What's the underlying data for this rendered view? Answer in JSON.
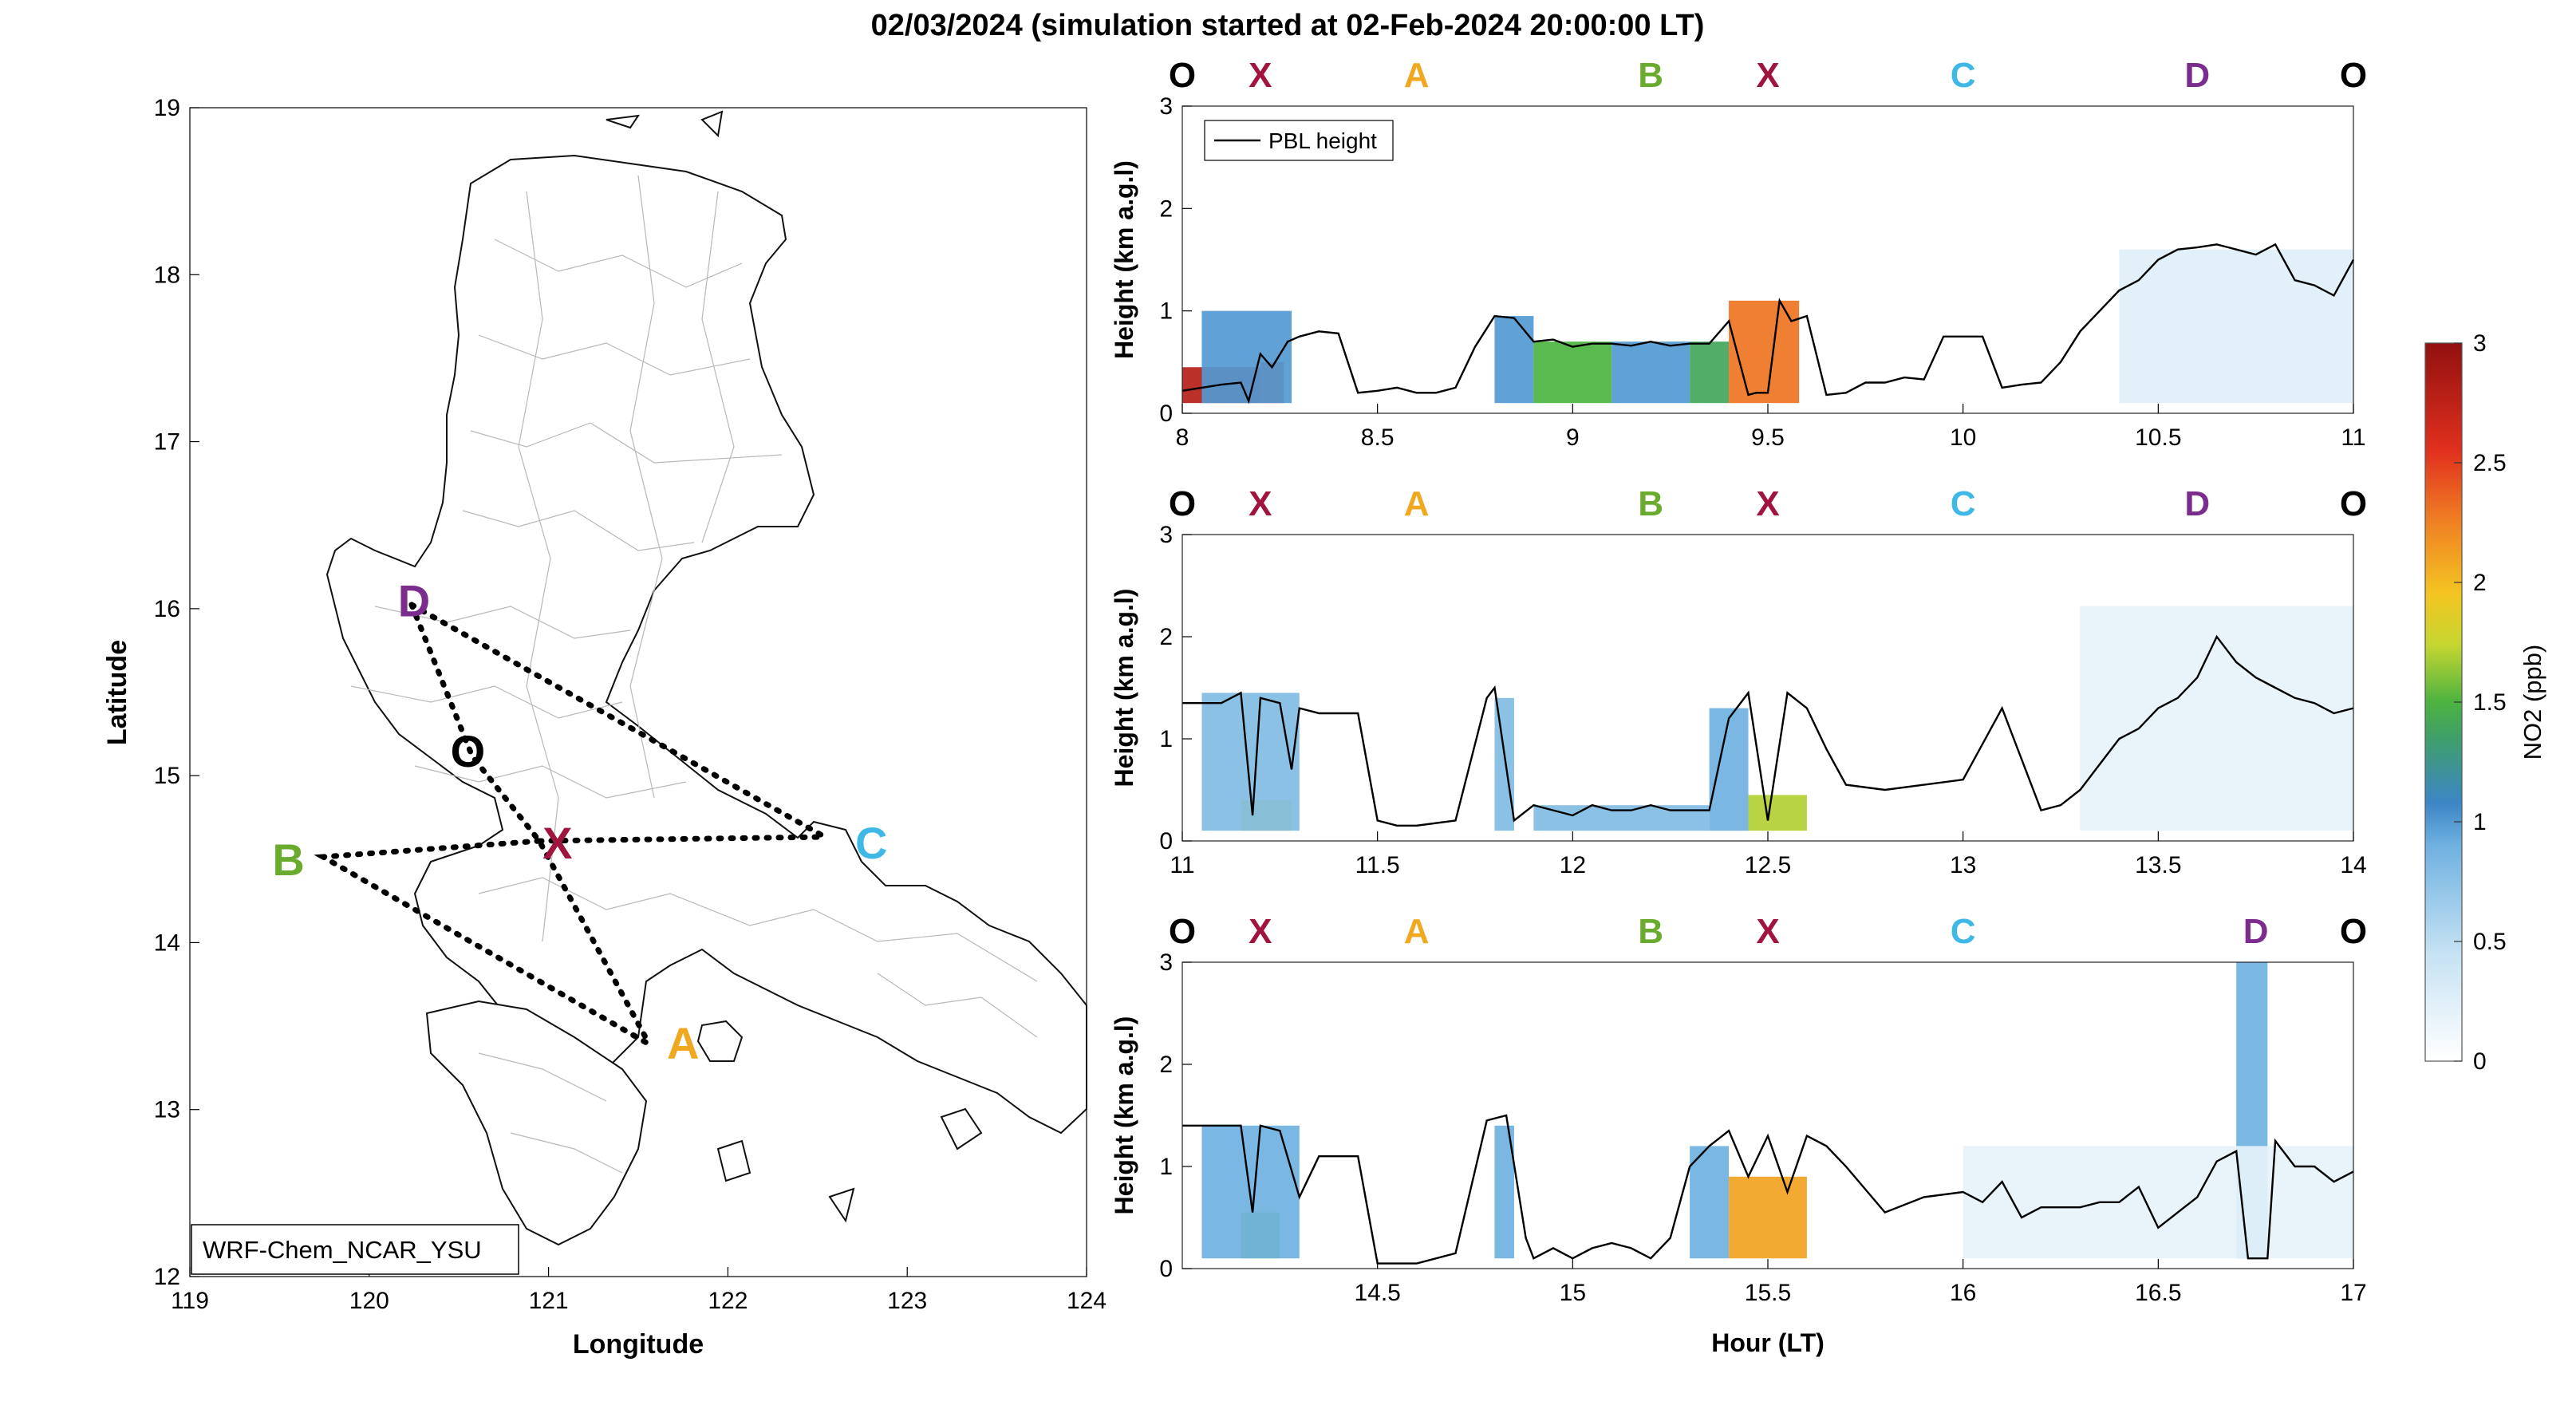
{
  "title": "02/03/2024 (simulation started at 02-Feb-2024 20:00:00 LT)",
  "map": {
    "xlabel": "Longitude",
    "ylabel": "Latitude",
    "xticks": [
      "119",
      "120",
      "121",
      "122",
      "123",
      "124"
    ],
    "yticks": [
      "12",
      "13",
      "14",
      "15",
      "16",
      "17",
      "18",
      "19"
    ],
    "xlim": [
      119,
      124
    ],
    "ylim": [
      12,
      19
    ],
    "model_label": "WRF-Chem_NCAR_YSU",
    "sites": [
      {
        "name": "D",
        "lon": 120.25,
        "lat": 16.05,
        "color": "#7b2d8e"
      },
      {
        "name": "O",
        "lon": 120.55,
        "lat": 15.15,
        "color": "#000000"
      },
      {
        "name": "X",
        "lon": 121.05,
        "lat": 14.6,
        "color": "#a0153e"
      },
      {
        "name": "B",
        "lon": 119.55,
        "lat": 14.5,
        "color": "#6aab2e"
      },
      {
        "name": "C",
        "lon": 122.8,
        "lat": 14.6,
        "color": "#3fb8e6"
      },
      {
        "name": "A",
        "lon": 121.75,
        "lat": 13.4,
        "color": "#f0a820"
      }
    ]
  },
  "route_labels": [
    {
      "text": "O",
      "color": "#000000"
    },
    {
      "text": "X",
      "color": "#a0153e"
    },
    {
      "text": "A",
      "color": "#f0a820"
    },
    {
      "text": "B",
      "color": "#6aab2e"
    },
    {
      "text": "X",
      "color": "#a0153e"
    },
    {
      "text": "C",
      "color": "#3fb8e6"
    },
    {
      "text": "D",
      "color": "#7b2d8e"
    },
    {
      "text": "O",
      "color": "#000000"
    }
  ],
  "colorbar": {
    "label": "NO2 (ppb)",
    "ticks": [
      "0",
      "0.5",
      "1",
      "1.5",
      "2",
      "2.5",
      "3"
    ],
    "range": [
      0,
      3
    ]
  },
  "shared_xlabel": "Hour (LT)",
  "chart_data": [
    {
      "type": "line",
      "ylabel": "Height (km a.g.l)",
      "legend": "PBL height",
      "legend_position": "top-left",
      "xlim": [
        8,
        11
      ],
      "ylim": [
        0,
        3
      ],
      "xticks": [
        "8",
        "8.5",
        "9",
        "9.5",
        "10",
        "10.5",
        "11"
      ],
      "yticks": [
        "0",
        "1",
        "2",
        "3"
      ],
      "route_hours": [
        8,
        8.2,
        8.6,
        9.2,
        9.5,
        10,
        10.6,
        11
      ],
      "pbl": {
        "x": [
          8.0,
          8.05,
          8.1,
          8.15,
          8.17,
          8.2,
          8.23,
          8.27,
          8.3,
          8.35,
          8.4,
          8.45,
          8.5,
          8.55,
          8.6,
          8.65,
          8.7,
          8.75,
          8.8,
          8.85,
          8.9,
          8.95,
          9.0,
          9.05,
          9.1,
          9.15,
          9.2,
          9.25,
          9.3,
          9.35,
          9.4,
          9.45,
          9.47,
          9.5,
          9.53,
          9.56,
          9.6,
          9.65,
          9.7,
          9.75,
          9.8,
          9.85,
          9.9,
          9.95,
          10.0,
          10.05,
          10.1,
          10.15,
          10.2,
          10.25,
          10.3,
          10.35,
          10.4,
          10.45,
          10.5,
          10.55,
          10.6,
          10.65,
          10.7,
          10.75,
          10.8,
          10.85,
          10.9,
          10.95,
          11.0
        ],
        "y": [
          0.22,
          0.25,
          0.28,
          0.3,
          0.12,
          0.58,
          0.45,
          0.7,
          0.75,
          0.8,
          0.78,
          0.2,
          0.22,
          0.25,
          0.2,
          0.2,
          0.25,
          0.65,
          0.95,
          0.93,
          0.7,
          0.72,
          0.65,
          0.68,
          0.68,
          0.66,
          0.7,
          0.66,
          0.68,
          0.68,
          0.9,
          0.18,
          0.2,
          0.2,
          1.1,
          0.9,
          0.95,
          0.18,
          0.2,
          0.3,
          0.3,
          0.35,
          0.33,
          0.75,
          0.75,
          0.75,
          0.25,
          0.28,
          0.3,
          0.5,
          0.8,
          1.0,
          1.2,
          1.3,
          1.5,
          1.6,
          1.62,
          1.65,
          1.6,
          1.55,
          1.65,
          1.3,
          1.25,
          1.15,
          1.5
        ]
      },
      "no2_vertical": [
        {
          "x0": 8.0,
          "x1": 8.2,
          "level": 2.8,
          "top": 0.45
        },
        {
          "x0": 8.2,
          "x1": 8.26,
          "level": 2.6,
          "top": 0.5
        },
        {
          "x0": 8.05,
          "x1": 8.28,
          "level": 1.0,
          "top": 1.0
        },
        {
          "x0": 8.8,
          "x1": 8.9,
          "level": 1.0,
          "top": 0.95
        },
        {
          "x0": 8.9,
          "x1": 9.1,
          "level": 1.5,
          "top": 0.7
        },
        {
          "x0": 9.1,
          "x1": 9.3,
          "level": 1.0,
          "top": 0.7
        },
        {
          "x0": 9.3,
          "x1": 9.4,
          "level": 1.4,
          "top": 0.7
        },
        {
          "x0": 9.4,
          "x1": 9.58,
          "level": 2.3,
          "top": 1.1
        },
        {
          "x0": 10.4,
          "x1": 11.0,
          "level": 0.25,
          "top": 1.6
        }
      ]
    },
    {
      "type": "line",
      "ylabel": "Height (km a.g.l)",
      "xlim": [
        11,
        14
      ],
      "ylim": [
        0,
        3
      ],
      "xticks": [
        "11",
        "11.5",
        "12",
        "12.5",
        "13",
        "13.5",
        "14"
      ],
      "yticks": [
        "0",
        "1",
        "2",
        "3"
      ],
      "route_hours": [
        11,
        11.2,
        11.6,
        12.2,
        12.5,
        13,
        13.6,
        14
      ],
      "pbl": {
        "x": [
          11.0,
          11.1,
          11.15,
          11.18,
          11.2,
          11.25,
          11.28,
          11.3,
          11.35,
          11.45,
          11.5,
          11.55,
          11.6,
          11.7,
          11.78,
          11.8,
          11.85,
          11.9,
          11.95,
          12.0,
          12.05,
          12.1,
          12.15,
          12.2,
          12.25,
          12.3,
          12.35,
          12.4,
          12.45,
          12.5,
          12.55,
          12.6,
          12.65,
          12.7,
          12.8,
          12.9,
          13.0,
          13.1,
          13.2,
          13.25,
          13.3,
          13.35,
          13.4,
          13.45,
          13.5,
          13.55,
          13.6,
          13.65,
          13.7,
          13.75,
          13.8,
          13.85,
          13.9,
          13.95,
          14.0
        ],
        "y": [
          1.35,
          1.35,
          1.45,
          0.25,
          1.4,
          1.35,
          0.7,
          1.3,
          1.25,
          1.25,
          0.2,
          0.15,
          0.15,
          0.2,
          1.4,
          1.5,
          0.2,
          0.35,
          0.3,
          0.25,
          0.35,
          0.3,
          0.3,
          0.35,
          0.3,
          0.3,
          0.3,
          1.2,
          1.45,
          0.2,
          1.45,
          1.3,
          0.9,
          0.55,
          0.5,
          0.55,
          0.6,
          1.3,
          0.3,
          0.35,
          0.5,
          0.75,
          1.0,
          1.1,
          1.3,
          1.4,
          1.6,
          2.0,
          1.75,
          1.6,
          1.5,
          1.4,
          1.35,
          1.25,
          1.3
        ]
      },
      "no2_vertical": [
        {
          "x0": 11.15,
          "x1": 11.28,
          "level": 1.8,
          "top": 0.4
        },
        {
          "x0": 11.05,
          "x1": 11.3,
          "level": 0.8,
          "top": 1.45
        },
        {
          "x0": 11.8,
          "x1": 11.85,
          "level": 0.8,
          "top": 1.4
        },
        {
          "x0": 11.9,
          "x1": 12.35,
          "level": 0.8,
          "top": 0.35
        },
        {
          "x0": 12.35,
          "x1": 12.45,
          "level": 0.9,
          "top": 1.3
        },
        {
          "x0": 12.45,
          "x1": 12.6,
          "level": 1.7,
          "top": 0.45
        },
        {
          "x0": 13.3,
          "x1": 14.0,
          "level": 0.2,
          "top": 2.3
        }
      ]
    },
    {
      "type": "line",
      "ylabel": "Height (km a.g.l)",
      "xlabel": "Hour (LT)",
      "xlim": [
        14,
        17
      ],
      "ylim": [
        0,
        3
      ],
      "xticks": [
        "14.5",
        "15",
        "15.5",
        "16",
        "16.5",
        "17"
      ],
      "yticks": [
        "0",
        "1",
        "2",
        "3"
      ],
      "route_hours": [
        14,
        14.2,
        14.6,
        15.2,
        15.5,
        16,
        16.75,
        17
      ],
      "pbl": {
        "x": [
          14.0,
          14.1,
          14.15,
          14.18,
          14.2,
          14.25,
          14.3,
          14.35,
          14.45,
          14.5,
          14.6,
          14.7,
          14.78,
          14.83,
          14.88,
          14.9,
          14.95,
          15.0,
          15.05,
          15.1,
          15.15,
          15.2,
          15.25,
          15.3,
          15.35,
          15.4,
          15.45,
          15.5,
          15.55,
          15.6,
          15.65,
          15.7,
          15.8,
          15.9,
          16.0,
          16.05,
          16.1,
          16.15,
          16.2,
          16.3,
          16.35,
          16.4,
          16.45,
          16.5,
          16.55,
          16.6,
          16.65,
          16.7,
          16.73,
          16.75,
          16.78,
          16.8,
          16.85,
          16.9,
          16.95,
          17.0
        ],
        "y": [
          1.4,
          1.4,
          1.4,
          0.55,
          1.4,
          1.35,
          0.7,
          1.1,
          1.1,
          0.05,
          0.05,
          0.15,
          1.45,
          1.5,
          0.3,
          0.1,
          0.2,
          0.1,
          0.2,
          0.25,
          0.2,
          0.1,
          0.3,
          1.0,
          1.2,
          1.35,
          0.9,
          1.3,
          0.75,
          1.3,
          1.2,
          1.0,
          0.55,
          0.7,
          0.75,
          0.65,
          0.85,
          0.5,
          0.6,
          0.6,
          0.65,
          0.65,
          0.8,
          0.4,
          0.55,
          0.7,
          1.05,
          1.15,
          0.1,
          0.1,
          0.1,
          1.25,
          1.0,
          1.0,
          0.85,
          0.95
        ]
      },
      "no2_vertical": [
        {
          "x0": 14.15,
          "x1": 14.25,
          "level": 1.6,
          "top": 0.55
        },
        {
          "x0": 14.05,
          "x1": 14.3,
          "level": 0.9,
          "top": 1.4
        },
        {
          "x0": 14.8,
          "x1": 14.85,
          "level": 0.9,
          "top": 1.4
        },
        {
          "x0": 15.3,
          "x1": 15.4,
          "level": 0.9,
          "top": 1.2
        },
        {
          "x0": 15.4,
          "x1": 15.6,
          "level": 2.1,
          "top": 0.9
        },
        {
          "x0": 16.7,
          "x1": 16.78,
          "level": 0.9,
          "top": 3.0
        },
        {
          "x0": 16.0,
          "x1": 17.0,
          "level": 0.2,
          "top": 1.2
        }
      ]
    }
  ]
}
